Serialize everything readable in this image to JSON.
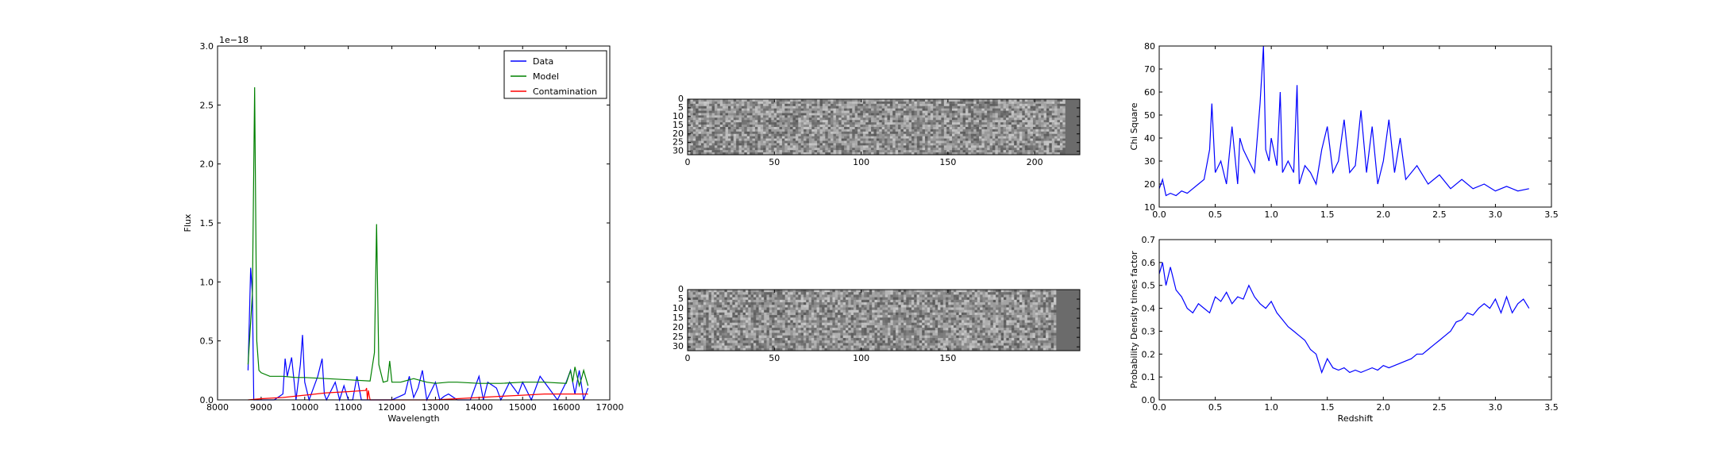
{
  "colors": {
    "data": "#0000ff",
    "model": "#008000",
    "contamination": "#ff0000"
  },
  "chart_data": [
    {
      "type": "line",
      "xlabel": "Wavelength",
      "ylabel": "Flux",
      "y_offset_text": "1e−18",
      "xlim": [
        8000,
        17000
      ],
      "ylim": [
        0,
        3.0
      ],
      "xticks": [
        "8000",
        "9000",
        "10000",
        "11000",
        "12000",
        "13000",
        "14000",
        "15000",
        "16000",
        "17000"
      ],
      "yticks": [
        "0.0",
        "0.5",
        "1.0",
        "1.5",
        "2.0",
        "2.5",
        "3.0"
      ],
      "legend_position": "top-right",
      "series": [
        {
          "name": "Data",
          "color": "#0000ff",
          "x": [
            8700,
            8760,
            8800,
            8830,
            8860,
            8900,
            9000,
            9300,
            9500,
            9550,
            9600,
            9700,
            9800,
            9900,
            9950,
            10000,
            10100,
            10300,
            10400,
            10450,
            10500,
            10700,
            10800,
            10900,
            11000,
            11100,
            11200,
            11300,
            11400,
            11500,
            11700,
            12000,
            12300,
            12400,
            12500,
            12600,
            12700,
            12800,
            13000,
            13100,
            13200,
            13300,
            13500,
            13800,
            14000,
            14100,
            14200,
            14400,
            14500,
            14700,
            14900,
            15000,
            15200,
            15400,
            15600,
            15800,
            16000,
            16100,
            16200,
            16300,
            16400,
            16500
          ],
          "y": [
            0.25,
            1.12,
            0.9,
            0.0,
            0.0,
            0.0,
            0.0,
            0.0,
            0.05,
            0.35,
            0.2,
            0.36,
            0.0,
            0.3,
            0.55,
            0.15,
            0.0,
            0.2,
            0.35,
            0.05,
            0.0,
            0.15,
            0.0,
            0.12,
            0.0,
            0.0,
            0.2,
            0.0,
            0.0,
            0.0,
            0.0,
            0.0,
            0.05,
            0.2,
            0.02,
            0.1,
            0.25,
            0.0,
            0.15,
            0.0,
            0.03,
            0.05,
            0.0,
            0.0,
            0.2,
            0.0,
            0.15,
            0.1,
            0.0,
            0.15,
            0.05,
            0.15,
            0.0,
            0.2,
            0.1,
            0.0,
            0.15,
            0.25,
            0.05,
            0.25,
            0.0,
            0.1
          ]
        },
        {
          "name": "Model",
          "color": "#008000",
          "x": [
            8700,
            8800,
            8850,
            8900,
            8950,
            9000,
            9200,
            9500,
            9800,
            10000,
            10500,
            11000,
            11500,
            11600,
            11650,
            11700,
            11800,
            11900,
            11950,
            12000,
            12200,
            12500,
            12800,
            13000,
            13300,
            13500,
            14000,
            14500,
            15000,
            15500,
            16000,
            16100,
            16150,
            16200,
            16300,
            16350,
            16400,
            16500
          ],
          "y": [
            0.3,
            0.9,
            2.65,
            0.5,
            0.25,
            0.23,
            0.2,
            0.2,
            0.19,
            0.19,
            0.18,
            0.17,
            0.16,
            0.4,
            1.49,
            0.3,
            0.15,
            0.16,
            0.33,
            0.15,
            0.15,
            0.18,
            0.15,
            0.14,
            0.15,
            0.15,
            0.14,
            0.14,
            0.15,
            0.15,
            0.14,
            0.25,
            0.15,
            0.28,
            0.12,
            0.18,
            0.25,
            0.12
          ]
        },
        {
          "name": "Contamination",
          "color": "#ff0000",
          "x": [
            8700,
            9000,
            9500,
            10000,
            10500,
            11000,
            11400,
            11420,
            11440,
            11460,
            11500,
            12000,
            12500,
            13000,
            13500,
            14000,
            14500,
            15000,
            15500,
            16000,
            16500
          ],
          "y": [
            0.0,
            0.01,
            0.02,
            0.04,
            0.06,
            0.07,
            0.08,
            0.1,
            0.0,
            0.08,
            0.0,
            0.0,
            0.0,
            0.0,
            0.01,
            0.02,
            0.03,
            0.04,
            0.05,
            0.05,
            0.05
          ]
        }
      ]
    },
    {
      "type": "heatmap",
      "colormap": "gray",
      "xlim": [
        0,
        226
      ],
      "ylim": [
        32,
        0
      ],
      "xticks": [
        "0",
        "50",
        "100",
        "150",
        "200"
      ],
      "yticks": [
        "0",
        "5",
        "10",
        "15",
        "20",
        "25",
        "30"
      ]
    },
    {
      "type": "heatmap",
      "colormap": "gray",
      "xlim": [
        0,
        226
      ],
      "ylim": [
        32,
        0
      ],
      "xticks": [
        "0",
        "50",
        "100",
        "150"
      ],
      "yticks": [
        "0",
        "5",
        "10",
        "15",
        "20",
        "25",
        "30"
      ]
    },
    {
      "type": "line",
      "xlabel": "",
      "ylabel": "Chi Square",
      "xlim": [
        0.0,
        3.5
      ],
      "ylim": [
        10,
        80
      ],
      "xticks": [
        "0.0",
        "0.5",
        "1.0",
        "1.5",
        "2.0",
        "2.5",
        "3.0",
        "3.5"
      ],
      "yticks": [
        "10",
        "20",
        "30",
        "40",
        "50",
        "60",
        "70",
        "80"
      ],
      "series": [
        {
          "color": "#0000ff",
          "x": [
            0.0,
            0.03,
            0.06,
            0.1,
            0.15,
            0.2,
            0.25,
            0.3,
            0.35,
            0.4,
            0.45,
            0.47,
            0.5,
            0.55,
            0.6,
            0.65,
            0.7,
            0.72,
            0.75,
            0.8,
            0.85,
            0.9,
            0.93,
            0.95,
            0.98,
            1.0,
            1.05,
            1.08,
            1.1,
            1.15,
            1.2,
            1.23,
            1.25,
            1.3,
            1.35,
            1.4,
            1.45,
            1.5,
            1.55,
            1.6,
            1.65,
            1.7,
            1.75,
            1.8,
            1.85,
            1.9,
            1.95,
            2.0,
            2.05,
            2.1,
            2.15,
            2.2,
            2.3,
            2.4,
            2.5,
            2.6,
            2.7,
            2.8,
            2.9,
            3.0,
            3.1,
            3.2,
            3.3
          ],
          "y": [
            18,
            22,
            15,
            16,
            15,
            17,
            16,
            18,
            20,
            22,
            35,
            55,
            25,
            30,
            20,
            45,
            20,
            40,
            35,
            30,
            25,
            55,
            80,
            35,
            30,
            40,
            28,
            60,
            25,
            30,
            25,
            63,
            20,
            28,
            25,
            20,
            35,
            45,
            25,
            30,
            48,
            25,
            28,
            52,
            25,
            45,
            20,
            30,
            48,
            25,
            40,
            22,
            28,
            20,
            24,
            18,
            22,
            18,
            20,
            17,
            19,
            17,
            18
          ]
        }
      ]
    },
    {
      "type": "line",
      "xlabel": "Redshift",
      "ylabel": "Probability Density times factor",
      "xlim": [
        0.0,
        3.5
      ],
      "ylim": [
        0.0,
        0.7
      ],
      "xticks": [
        "0.0",
        "0.5",
        "1.0",
        "1.5",
        "2.0",
        "2.5",
        "3.0",
        "3.5"
      ],
      "yticks": [
        "0.0",
        "0.1",
        "0.2",
        "0.3",
        "0.4",
        "0.5",
        "0.6",
        "0.7"
      ],
      "series": [
        {
          "color": "#0000ff",
          "x": [
            0.0,
            0.03,
            0.06,
            0.1,
            0.15,
            0.2,
            0.25,
            0.3,
            0.35,
            0.4,
            0.45,
            0.5,
            0.55,
            0.6,
            0.65,
            0.7,
            0.75,
            0.8,
            0.85,
            0.9,
            0.95,
            1.0,
            1.05,
            1.1,
            1.15,
            1.2,
            1.25,
            1.3,
            1.35,
            1.4,
            1.45,
            1.5,
            1.55,
            1.6,
            1.65,
            1.7,
            1.75,
            1.8,
            1.85,
            1.9,
            1.95,
            2.0,
            2.05,
            2.1,
            2.15,
            2.2,
            2.25,
            2.3,
            2.35,
            2.4,
            2.45,
            2.5,
            2.55,
            2.6,
            2.65,
            2.7,
            2.75,
            2.8,
            2.85,
            2.9,
            2.95,
            3.0,
            3.05,
            3.1,
            3.15,
            3.2,
            3.25,
            3.3
          ],
          "y": [
            0.55,
            0.6,
            0.5,
            0.58,
            0.48,
            0.45,
            0.4,
            0.38,
            0.42,
            0.4,
            0.38,
            0.45,
            0.43,
            0.47,
            0.42,
            0.45,
            0.44,
            0.5,
            0.45,
            0.42,
            0.4,
            0.43,
            0.38,
            0.35,
            0.32,
            0.3,
            0.28,
            0.26,
            0.22,
            0.2,
            0.12,
            0.18,
            0.14,
            0.13,
            0.14,
            0.12,
            0.13,
            0.12,
            0.13,
            0.14,
            0.13,
            0.15,
            0.14,
            0.15,
            0.16,
            0.17,
            0.18,
            0.2,
            0.2,
            0.22,
            0.24,
            0.26,
            0.28,
            0.3,
            0.34,
            0.35,
            0.38,
            0.37,
            0.4,
            0.42,
            0.4,
            0.44,
            0.38,
            0.45,
            0.38,
            0.42,
            0.44,
            0.4
          ]
        }
      ]
    }
  ]
}
